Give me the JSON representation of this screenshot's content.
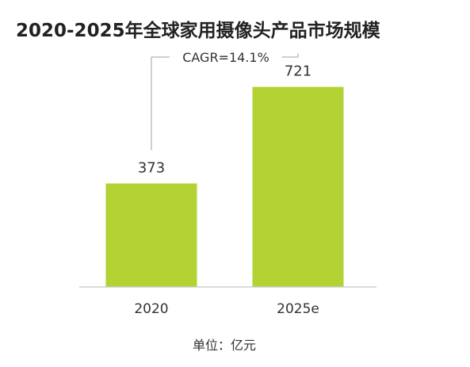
{
  "chart_data": {
    "type": "bar",
    "title": "2020-2025年全球家用摄像头产品市场规模",
    "categories": [
      "2020",
      "2025e"
    ],
    "values": [
      373,
      721
    ],
    "value_labels": [
      "373",
      "721"
    ],
    "ylim": [
      0,
      800
    ],
    "grid": false,
    "legend": "none",
    "unit_text": "单位：亿元",
    "annotation": "CAGR=14.1%",
    "colors": {
      "bar": "#b3d234",
      "bracket": "#b5b5b5",
      "baseline": "#c8c8c8",
      "text": "#333333",
      "title": "#222222"
    }
  }
}
